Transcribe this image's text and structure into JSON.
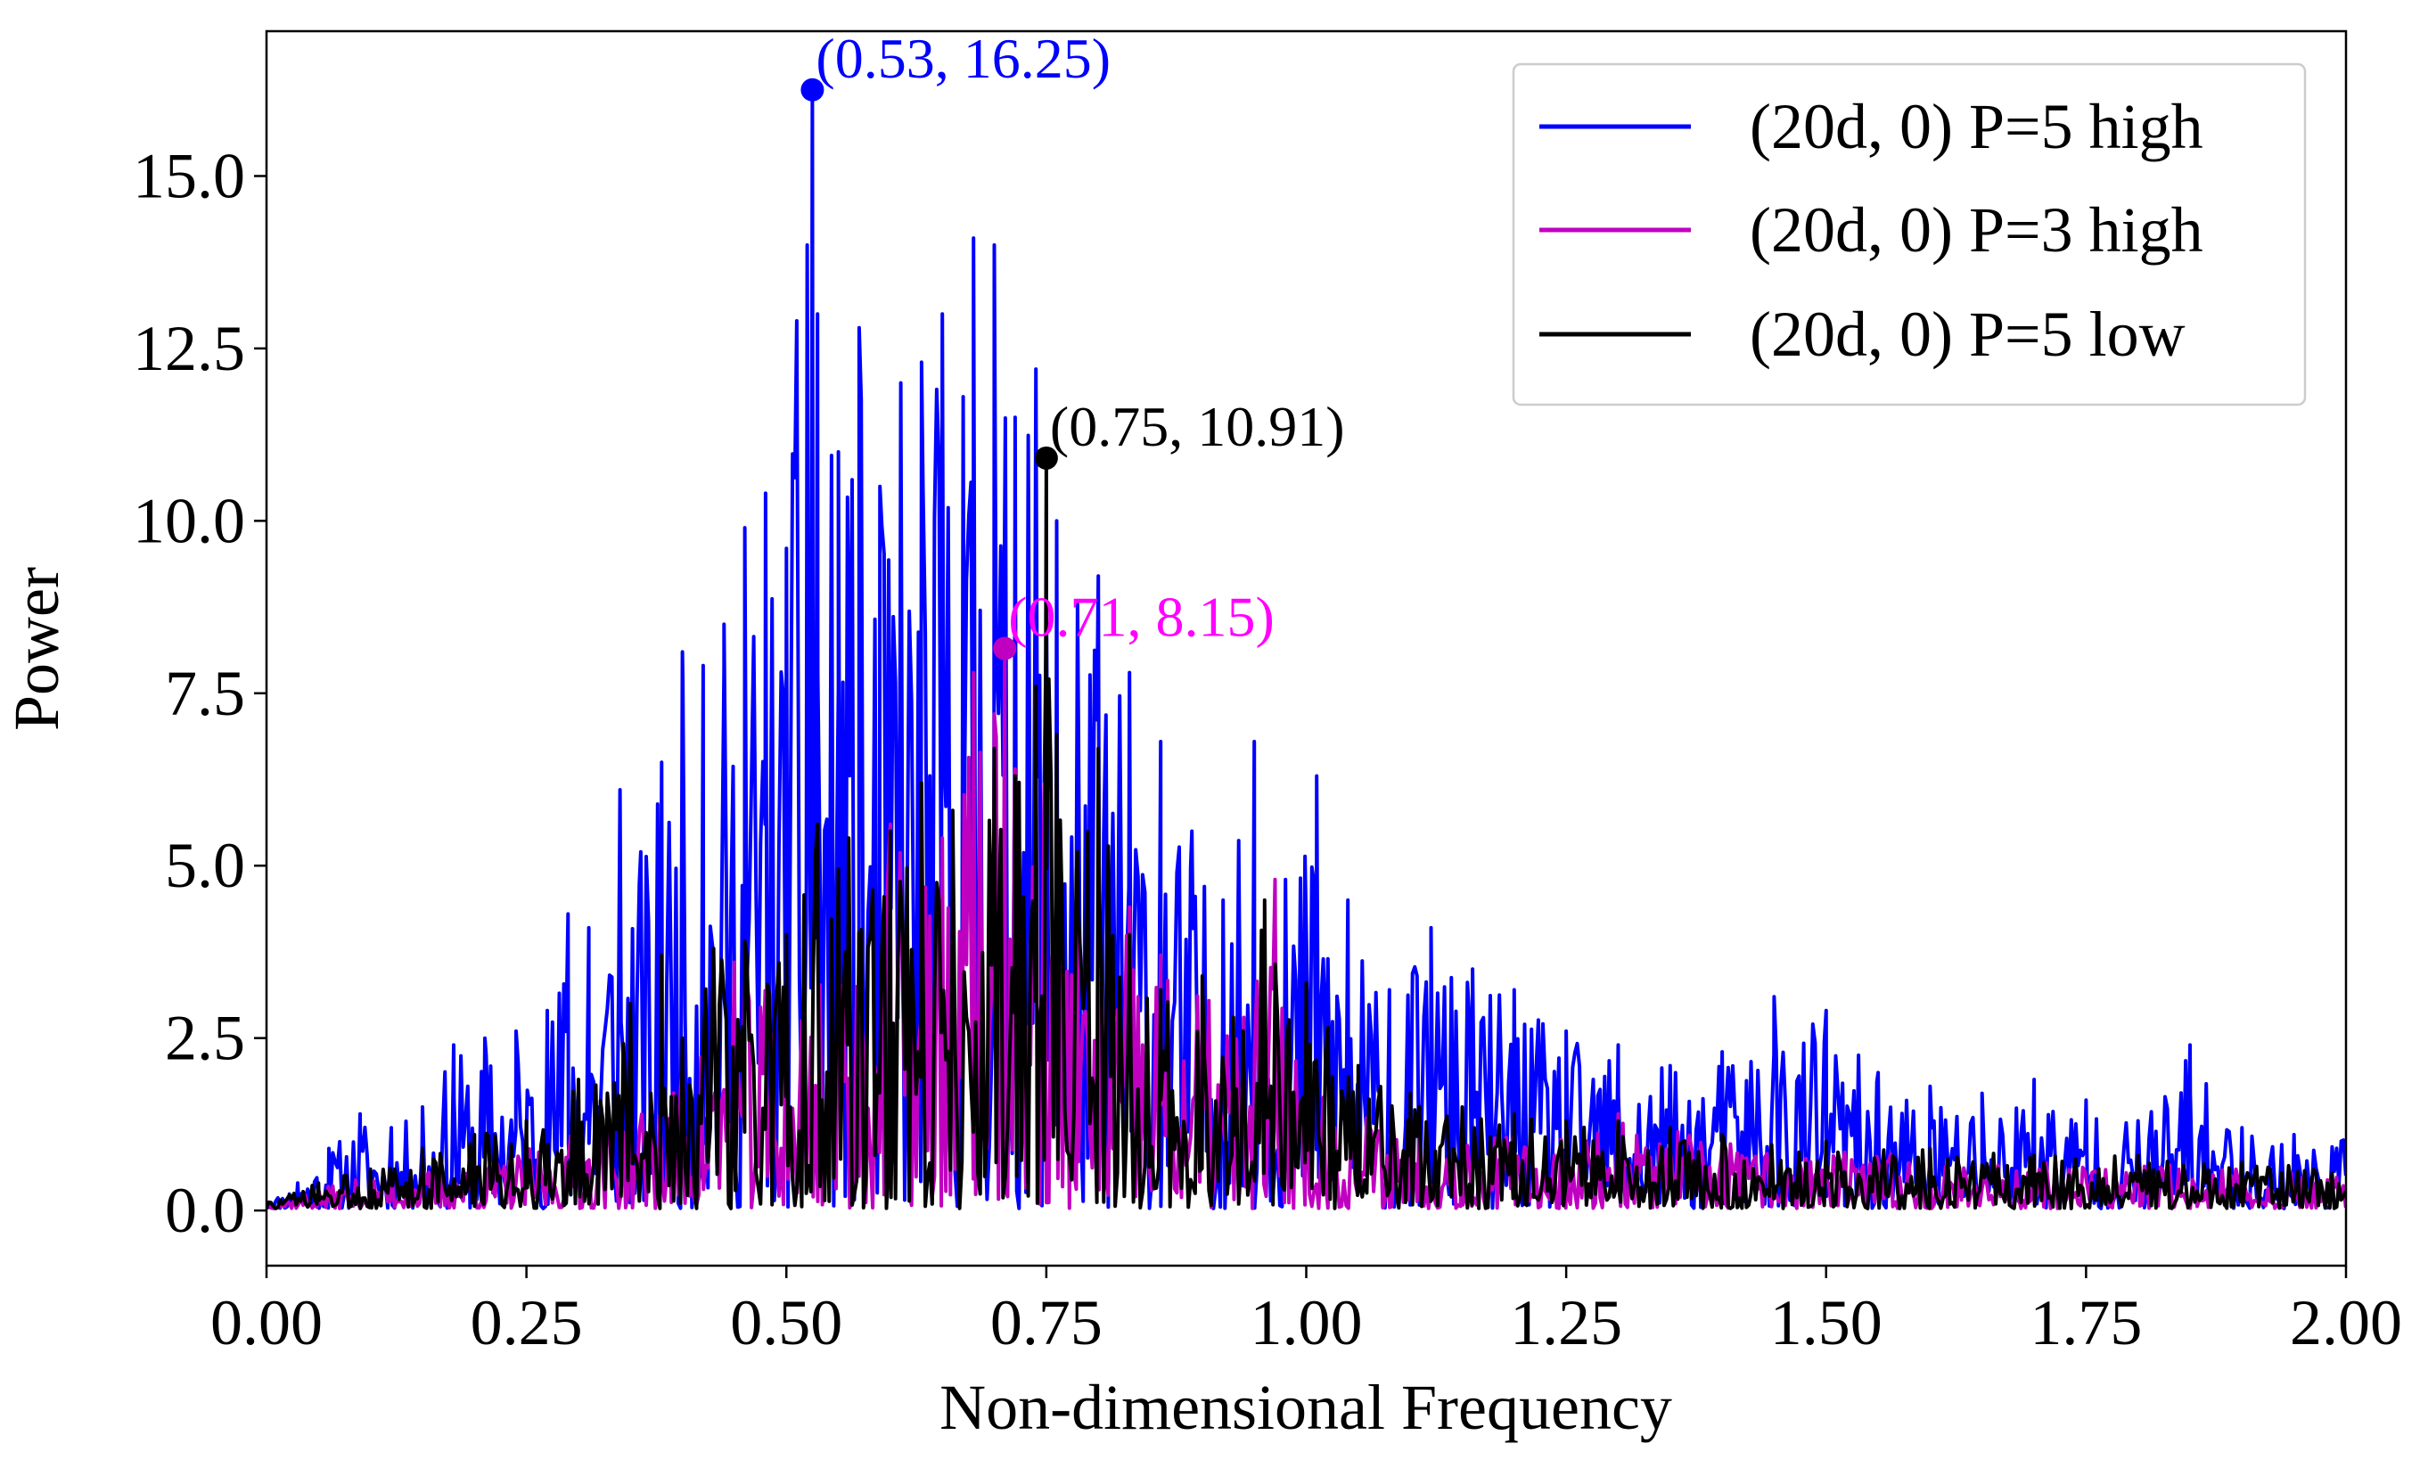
{
  "chart_data": {
    "type": "line",
    "title": "",
    "xlabel": "Non-dimensional Frequency",
    "ylabel": "Power",
    "xlim": [
      0.0,
      2.0
    ],
    "ylim": [
      -0.8,
      17.1
    ],
    "xticks": [
      0.0,
      0.25,
      0.5,
      0.75,
      1.0,
      1.25,
      1.5,
      1.75,
      2.0
    ],
    "xtick_labels": [
      "0.00",
      "0.25",
      "0.50",
      "0.75",
      "1.00",
      "1.25",
      "1.50",
      "1.75",
      "2.00"
    ],
    "yticks": [
      0.0,
      2.5,
      5.0,
      7.5,
      10.0,
      12.5,
      15.0
    ],
    "ytick_labels": [
      "0.0",
      "2.5",
      "5.0",
      "7.5",
      "10.0",
      "12.5",
      "15.0"
    ],
    "legend_position": "top-right",
    "series": [
      {
        "name": "(20d, 0) P=5 high",
        "color": "#0000ff",
        "x": [
          0.0,
          0.03,
          0.06,
          0.09,
          0.12,
          0.15,
          0.18,
          0.21,
          0.24,
          0.27,
          0.29,
          0.31,
          0.34,
          0.36,
          0.38,
          0.4,
          0.42,
          0.44,
          0.46,
          0.48,
          0.5,
          0.51,
          0.52,
          0.525,
          0.53,
          0.55,
          0.57,
          0.59,
          0.61,
          0.63,
          0.65,
          0.67,
          0.68,
          0.7,
          0.72,
          0.74,
          0.76,
          0.78,
          0.8,
          0.83,
          0.86,
          0.89,
          0.92,
          0.95,
          0.98,
          1.01,
          1.04,
          1.08,
          1.12,
          1.16,
          1.2,
          1.25,
          1.3,
          1.35,
          1.4,
          1.45,
          1.5,
          1.55,
          1.6,
          1.65,
          1.7,
          1.75,
          1.8,
          1.85,
          1.9,
          1.95,
          2.0
        ],
        "y": [
          0.1,
          0.4,
          0.9,
          1.4,
          1.2,
          1.5,
          2.4,
          2.5,
          2.6,
          2.9,
          4.3,
          4.1,
          6.1,
          5.2,
          6.5,
          8.1,
          7.9,
          8.5,
          9.9,
          10.4,
          9.6,
          12.9,
          14.0,
          16.25,
          13.0,
          11.0,
          12.8,
          10.5,
          12.0,
          12.3,
          13.0,
          11.8,
          14.1,
          14.0,
          11.5,
          12.2,
          10.0,
          8.8,
          9.2,
          7.8,
          6.8,
          5.5,
          4.5,
          6.8,
          4.8,
          6.3,
          4.5,
          3.2,
          4.1,
          3.5,
          3.2,
          2.6,
          2.4,
          2.1,
          2.3,
          3.1,
          2.9,
          2.0,
          1.8,
          1.7,
          1.9,
          1.6,
          1.3,
          2.4,
          1.2,
          1.1,
          1.1
        ]
      },
      {
        "name": "(20d, 0) P=3 high",
        "color": "#c000c0",
        "x": [
          0.0,
          0.05,
          0.1,
          0.15,
          0.2,
          0.25,
          0.3,
          0.35,
          0.4,
          0.45,
          0.5,
          0.55,
          0.6,
          0.65,
          0.68,
          0.7,
          0.71,
          0.72,
          0.74,
          0.76,
          0.78,
          0.8,
          0.83,
          0.86,
          0.9,
          0.94,
          0.97,
          1.0,
          1.05,
          1.1,
          1.15,
          1.2,
          1.25,
          1.3,
          1.4,
          1.5,
          1.6,
          1.7,
          1.8,
          1.9,
          2.0
        ],
        "y": [
          0.1,
          0.3,
          0.5,
          0.6,
          0.7,
          0.9,
          1.2,
          1.6,
          2.0,
          3.6,
          3.5,
          4.5,
          5.6,
          5.4,
          7.8,
          7.2,
          8.15,
          6.4,
          7.5,
          5.6,
          4.0,
          3.5,
          4.4,
          3.7,
          3.4,
          2.8,
          4.8,
          2.0,
          1.6,
          1.4,
          1.2,
          1.1,
          1.1,
          1.4,
          1.0,
          0.9,
          0.8,
          0.7,
          0.7,
          0.6,
          0.5
        ]
      },
      {
        "name": "(20d, 0) P=5 low",
        "color": "#000000",
        "x": [
          0.0,
          0.05,
          0.1,
          0.15,
          0.2,
          0.25,
          0.3,
          0.35,
          0.38,
          0.4,
          0.43,
          0.46,
          0.5,
          0.53,
          0.56,
          0.6,
          0.63,
          0.66,
          0.7,
          0.72,
          0.74,
          0.75,
          0.76,
          0.78,
          0.8,
          0.83,
          0.86,
          0.9,
          0.93,
          0.96,
          1.0,
          1.05,
          1.1,
          1.15,
          1.2,
          1.25,
          1.3,
          1.35,
          1.4,
          1.5,
          1.6,
          1.7,
          1.8,
          1.9,
          2.0
        ],
        "y": [
          0.1,
          0.4,
          0.6,
          0.9,
          1.1,
          1.3,
          1.9,
          3.0,
          3.7,
          2.5,
          3.8,
          3.9,
          4.0,
          5.6,
          5.4,
          5.5,
          6.2,
          5.8,
          6.7,
          6.3,
          7.6,
          10.91,
          6.9,
          5.2,
          6.7,
          4.0,
          3.2,
          3.4,
          2.8,
          4.5,
          3.3,
          2.1,
          1.7,
          1.5,
          1.4,
          1.3,
          1.3,
          1.2,
          1.1,
          1.0,
          0.9,
          0.8,
          0.8,
          0.7,
          0.6
        ]
      }
    ],
    "annotations": [
      {
        "text": "(0.53, 16.25)",
        "x": 0.525,
        "y": 16.25,
        "color": "#0000ff",
        "series": 0
      },
      {
        "text": "(0.75, 10.91)",
        "x": 0.75,
        "y": 10.91,
        "color": "#000000",
        "series": 2
      },
      {
        "text": "(0.71, 8.15)",
        "x": 0.71,
        "y": 8.15,
        "color": "#ff00ff",
        "series": 1
      }
    ]
  }
}
